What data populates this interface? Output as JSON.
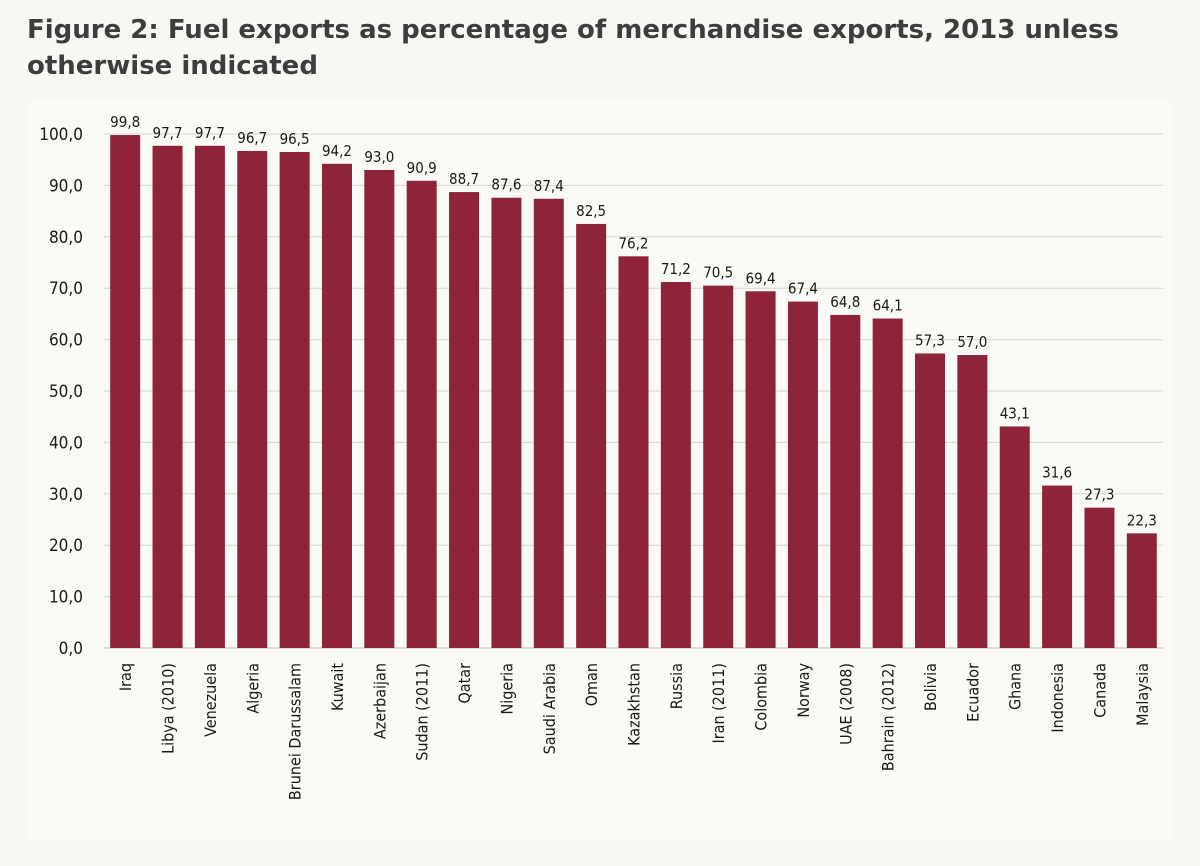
{
  "title": "Figure 2: Fuel exports as percentage of merchandise exports, 2013 unless otherwise indicated",
  "chart_data": {
    "type": "bar",
    "title": "Figure 2: Fuel exports as percentage of merchandise exports, 2013 unless otherwise indicated",
    "xlabel": "",
    "ylabel": "",
    "categories": [
      "Iraq",
      "Libya (2010)",
      "Venezuela",
      "Algeria",
      "Brunei Darussalam",
      "Kuwait",
      "Azerbaijan",
      "Sudan (2011)",
      "Qatar",
      "Nigeria",
      "Saudi Arabia",
      "Oman",
      "Kazakhstan",
      "Russia",
      "Iran (2011)",
      "Colombia",
      "Norway",
      "UAE (2008)",
      "Bahrain (2012)",
      "Bolivia",
      "Ecuador",
      "Ghana",
      "Indonesia",
      "Canada",
      "Malaysia"
    ],
    "values": [
      99.8,
      97.7,
      97.7,
      96.7,
      96.5,
      94.2,
      93.0,
      90.9,
      88.7,
      87.6,
      87.4,
      82.5,
      76.2,
      71.2,
      70.5,
      69.4,
      67.4,
      64.8,
      64.1,
      57.3,
      57.0,
      43.1,
      31.6,
      27.3,
      22.3
    ],
    "value_labels": [
      "99,8",
      "97,7",
      "97,7",
      "96,7",
      "96,5",
      "94,2",
      "93,0",
      "90,9",
      "88,7",
      "87,6",
      "87,4",
      "82,5",
      "76,2",
      "71,2",
      "70,5",
      "69,4",
      "67,4",
      "64,8",
      "64,1",
      "57,3",
      "57,0",
      "43,1",
      "31,6",
      "27,3",
      "22,3"
    ],
    "ylim": [
      0,
      100
    ],
    "yticks": [
      0,
      10,
      20,
      30,
      40,
      50,
      60,
      70,
      80,
      90,
      100
    ],
    "ytick_labels": [
      "0,0",
      "10,0",
      "20,0",
      "30,0",
      "40,0",
      "50,0",
      "60,0",
      "70,0",
      "80,0",
      "90,0",
      "100,0"
    ],
    "grid": true,
    "legend": "none",
    "bar_color": "#8e2439",
    "grid_color": "#d5d5d2"
  }
}
